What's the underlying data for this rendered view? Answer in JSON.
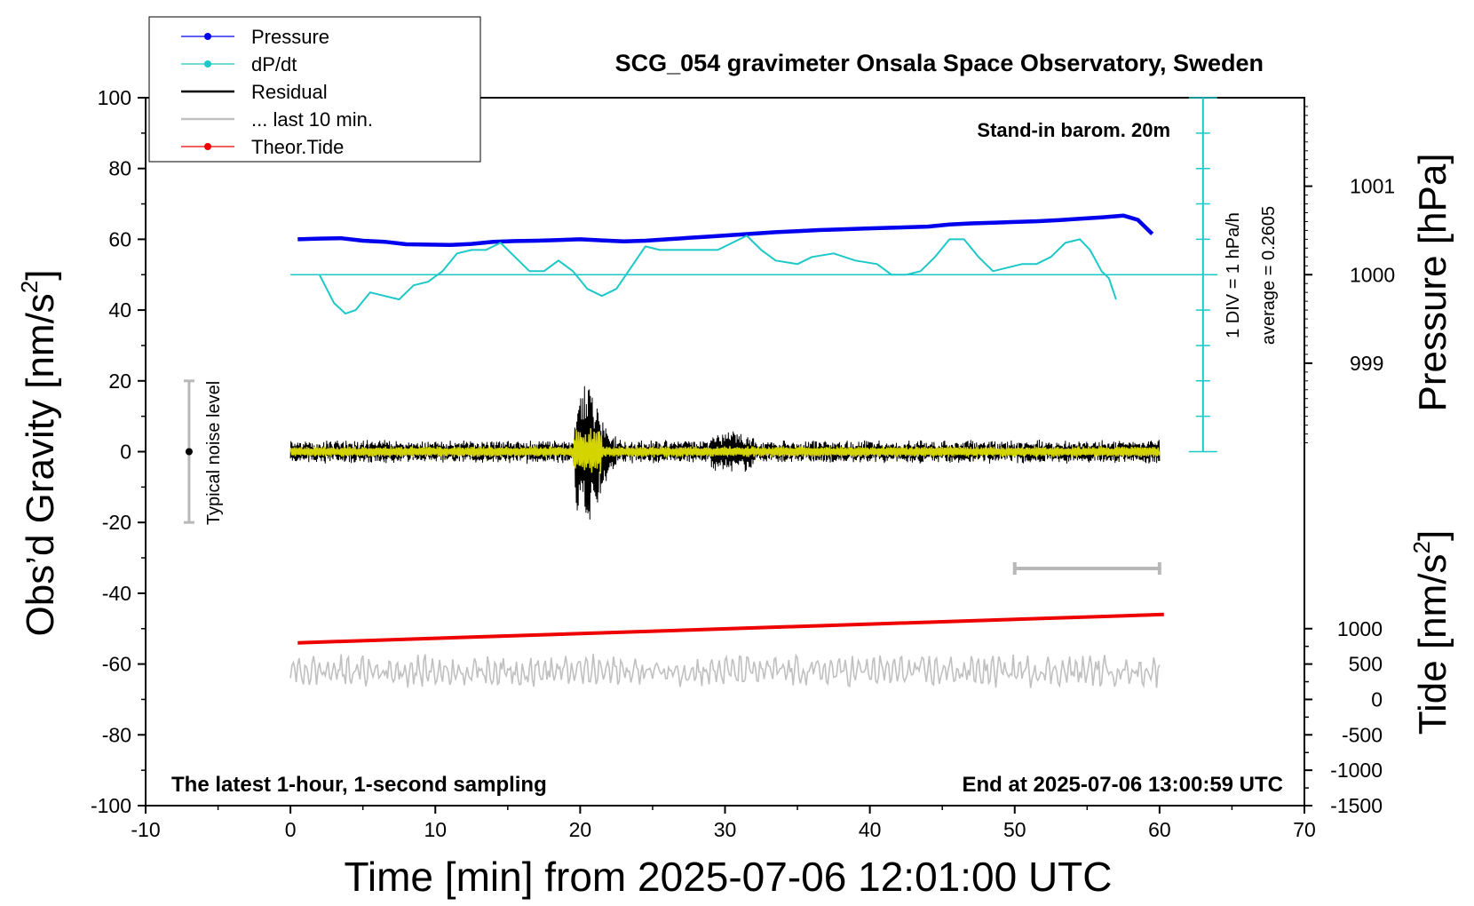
{
  "chart_data": {
    "type": "line",
    "title": "SCG_054 gravimeter Onsala Space Observatory, Sweden",
    "xlabel": "Time [min] from 2025-07-06 12:01:00 UTC",
    "xlim": [
      -10,
      70
    ],
    "xticks": [
      -10,
      0,
      10,
      20,
      30,
      40,
      50,
      60,
      70
    ],
    "left_axis": {
      "label_main": "Obs’d Gravity [nm/s",
      "label_sup": "2",
      "label_end": "]",
      "ylim": [
        -100,
        100
      ],
      "ticks": [
        100,
        80,
        60,
        40,
        20,
        0,
        -20,
        -40,
        -60,
        -80,
        -100
      ]
    },
    "pressure_axis": {
      "label": "Pressure [hPa]",
      "tick_values": [
        1001,
        1000,
        999
      ],
      "gravity_equivalent": [
        75,
        50,
        25
      ]
    },
    "tide_axis": {
      "label_main": "Tide [nm/s",
      "label_sup": "2",
      "label_end": "]",
      "ylim": [
        -1500,
        1000
      ],
      "ticks": [
        1000,
        500,
        0,
        -500,
        -1000,
        -1500
      ]
    },
    "legend": {
      "placement": "top-left",
      "items": [
        {
          "label": "Pressure",
          "color": "#0000ee",
          "marker": true
        },
        {
          "label": "dP/dt",
          "color": "#1cc8c8",
          "marker": true
        },
        {
          "label": "Residual",
          "color": "#000000",
          "marker": false
        },
        {
          "label": "... last 10 min.",
          "color": "#c0c0c0",
          "marker": false
        },
        {
          "label": "Theor.Tide",
          "color": "#ee0000",
          "marker": true
        }
      ]
    },
    "annotations": {
      "stand_in": "Stand-in barom. 20m",
      "div": "1 DIV = 1 hPa/h",
      "average": "average = 0.2605",
      "noise": "Typical noise level",
      "latest": "The latest 1-hour, 1-second sampling",
      "end_at": "End at 2025-07-06 13:00:59 UTC"
    },
    "noise_bar": {
      "x": -7,
      "y_min": -20,
      "y_max": 20
    },
    "ten_min_bar": {
      "x": [
        50,
        60
      ],
      "y": -33
    },
    "dpdt_scale": {
      "x": 63,
      "y_min": 0,
      "y_max": 100,
      "zero_line_y": 50
    },
    "colors": {
      "pressure": "#0000ee",
      "dpdt": "#1cc8c8",
      "residual": "#000000",
      "residual_filtered": "#d4d400",
      "last10": "#c0c0c0",
      "tide": "#ee0000"
    },
    "series": [
      {
        "name": "Pressure",
        "x": [
          0.5,
          2,
          3.5,
          5,
          6.5,
          8,
          9.5,
          11,
          12.5,
          14,
          15.5,
          17,
          18.5,
          20,
          21.5,
          23,
          24.5,
          26,
          27.5,
          29,
          30.5,
          32,
          33.5,
          35,
          36.5,
          38,
          39.5,
          41,
          42.5,
          44,
          45.5,
          47,
          48.5,
          50,
          51.5,
          53,
          54.5,
          56,
          57.5,
          58.5,
          59.5
        ],
        "y": [
          60,
          60.2,
          60.3,
          59.6,
          59.3,
          58.6,
          58.5,
          58.4,
          58.7,
          59.3,
          59.5,
          59.6,
          59.8,
          60,
          59.7,
          59.4,
          59.6,
          60,
          60.4,
          60.8,
          61.2,
          61.6,
          62,
          62.3,
          62.6,
          62.8,
          63,
          63.2,
          63.4,
          63.6,
          64.2,
          64.5,
          64.7,
          64.9,
          65.1,
          65.4,
          65.8,
          66.2,
          66.7,
          65.5,
          61.5
        ]
      },
      {
        "name": "dP/dt",
        "x": [
          2,
          3,
          3.8,
          4.5,
          5.5,
          6.5,
          7.5,
          8.5,
          9.5,
          10.5,
          11.5,
          12.5,
          13.5,
          14.5,
          15.5,
          16.5,
          17.5,
          18.5,
          19.5,
          20.5,
          21.5,
          22.5,
          23.5,
          24.5,
          25.5,
          26.5,
          28,
          29.5,
          30.5,
          31.5,
          32.5,
          33.5,
          35,
          36,
          37.5,
          39,
          40.5,
          41.5,
          42.5,
          43.5,
          44.5,
          45.5,
          46.5,
          47.5,
          48.5,
          49.5,
          50.5,
          51.5,
          52.5,
          53.5,
          54.5,
          55.2,
          56,
          56.5,
          57
        ],
        "y": [
          50,
          42,
          39,
          40,
          45,
          44,
          43,
          47,
          48,
          51,
          56,
          57,
          57,
          59,
          55,
          51,
          51,
          54,
          51,
          46,
          44,
          46,
          52,
          58,
          57,
          57,
          57,
          57,
          59,
          61,
          57,
          54,
          53,
          55,
          56,
          54,
          53,
          50,
          50,
          51,
          55,
          60,
          60,
          55,
          51,
          52,
          53,
          53,
          55,
          59,
          60,
          57,
          51,
          49,
          43
        ]
      },
      {
        "name": "Theor.Tide",
        "x": [
          0.5,
          60.3
        ],
        "y": [
          -54,
          -46
        ]
      }
    ]
  }
}
